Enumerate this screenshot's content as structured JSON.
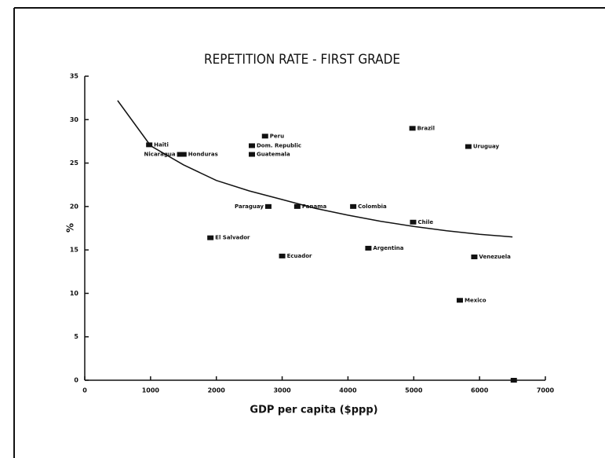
{
  "chart_data": {
    "type": "scatter",
    "title": "REPETITION RATE - FIRST GRADE",
    "x_label": "GDP per capita ($ppp)",
    "y_label": "%",
    "xlim": [
      0,
      7000
    ],
    "xticks": [
      0,
      1000,
      2000,
      3000,
      4000,
      5000,
      6000,
      7000
    ],
    "ylim": [
      0,
      35
    ],
    "yticks": [
      0,
      5,
      10,
      15,
      20,
      25,
      30,
      35
    ],
    "color": "#111111",
    "labels": [
      "Haiti",
      "Nicaragua",
      "Honduras",
      "Peru",
      "Dom. Republic",
      "Guatemala",
      "Paraguay",
      "Panama",
      "Colombia",
      "Brazil",
      "Uruguay",
      "Chile",
      "El Salvador",
      "Ecuador",
      "Argentina",
      "Venezuela",
      "Mexico",
      null
    ],
    "x": [
      980,
      1450,
      1500,
      2740,
      2540,
      2540,
      2790,
      3230,
      4080,
      4980,
      5830,
      4990,
      1910,
      3000,
      4310,
      5920,
      5700,
      6520
    ],
    "values": [
      27.1,
      26,
      26,
      28.1,
      27,
      26,
      20,
      20,
      20,
      29,
      26.9,
      18.2,
      16.4,
      14.3,
      15.2,
      14.2,
      9.2,
      0
    ],
    "fit": {
      "x": [
        500,
        1000,
        1500,
        2000,
        2500,
        3000,
        3500,
        4000,
        4500,
        5000,
        5500,
        6000,
        6500
      ],
      "values": [
        32.2,
        27,
        24.8,
        23,
        21.8,
        20.8,
        19.8,
        19,
        18.3,
        17.7,
        17.2,
        16.8,
        16.5
      ]
    }
  }
}
